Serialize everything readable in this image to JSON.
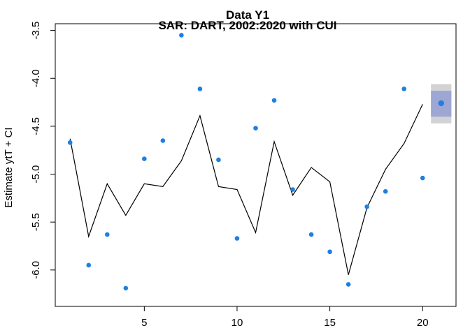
{
  "chart_data": {
    "type": "line",
    "title": "Data Y1",
    "subtitle": "SAR: DART, 2002:2020 with CUI",
    "xlabel": "",
    "ylabel": "Estimate ytT + CI",
    "xlim": [
      0.2,
      21.8
    ],
    "ylim": [
      -6.38,
      -3.43
    ],
    "xticks": [
      5,
      10,
      15,
      20
    ],
    "xtick_labels": [
      "5",
      "10",
      "15",
      "20"
    ],
    "yticks": [
      -6.0,
      -5.5,
      -5.0,
      -4.5,
      -4.0,
      -3.5
    ],
    "ytick_labels": [
      "-6.0",
      "-5.5",
      "-5.0",
      "-4.5",
      "-4.0",
      "-3.5"
    ],
    "grid": false,
    "series": [
      {
        "kind": "line",
        "color": "#000000",
        "x": [
          1,
          2,
          3,
          4,
          5,
          6,
          7,
          8,
          9,
          10,
          11,
          12,
          13,
          14,
          15,
          16,
          17,
          18,
          19,
          20
        ],
        "y": [
          -4.63,
          -5.65,
          -5.1,
          -5.43,
          -5.1,
          -5.13,
          -4.86,
          -4.39,
          -5.13,
          -5.16,
          -5.61,
          -4.66,
          -5.22,
          -4.93,
          -5.08,
          -6.05,
          -5.35,
          -4.95,
          -4.68,
          -4.27
        ]
      },
      {
        "kind": "scatter",
        "color": "#1f7fe0",
        "x": [
          1,
          2,
          3,
          4,
          5,
          6,
          7,
          8,
          9,
          10,
          11,
          12,
          13,
          14,
          15,
          16,
          17,
          18,
          19,
          20
        ],
        "y": [
          -4.67,
          -5.95,
          -5.63,
          -6.19,
          -4.84,
          -4.65,
          -3.55,
          -4.11,
          -4.85,
          -5.67,
          -4.52,
          -4.23,
          -5.16,
          -5.63,
          -5.81,
          -6.15,
          -5.34,
          -5.18,
          -4.11,
          -5.04
        ]
      }
    ],
    "forecast": {
      "x": 21,
      "y": -4.26,
      "ci_outer": [
        -4.47,
        -4.06
      ],
      "ci_inner": [
        -4.4,
        -4.13
      ],
      "point_color": "#1f7fe0",
      "outer_color": "#d3d3d3",
      "inner_color": "#9ea6d4"
    }
  }
}
